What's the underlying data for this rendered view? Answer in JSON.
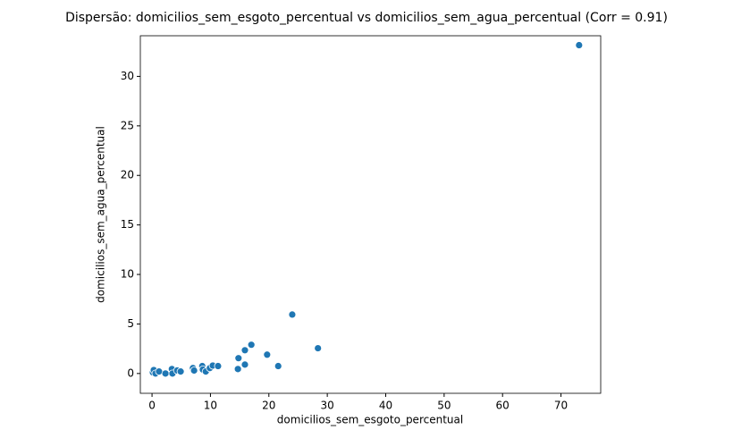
{
  "chart_data": {
    "type": "scatter",
    "title": "Dispersão: domicilios_sem_esgoto_percentual vs domicilios_sem_agua_percentual (Corr = 0.91)",
    "x_label": "domicilios_sem_esgoto_percentual",
    "y_label": "domicilios_sem_agua_percentual",
    "xlim": [
      -2.0,
      76.8
    ],
    "ylim": [
      -2.0,
      34.1
    ],
    "xticks": [
      0,
      10,
      20,
      30,
      40,
      50,
      60,
      70
    ],
    "yticks": [
      0,
      5,
      10,
      15,
      20,
      25,
      30
    ],
    "grid": false,
    "series": [
      {
        "color": "#1f77b4",
        "x": [
          0.15,
          0.3,
          0.6,
          1.2,
          2.3,
          3.4,
          3.5,
          4.3,
          4.9,
          7.0,
          7.2,
          8.6,
          8.7,
          9.2,
          9.9,
          10.4,
          11.3,
          14.7,
          14.8,
          15.9,
          15.9,
          17.0,
          19.7,
          21.6,
          24.0,
          28.4,
          73.1
        ],
        "values": [
          0.1,
          0.35,
          0.0,
          0.2,
          0.0,
          0.45,
          0.0,
          0.3,
          0.2,
          0.55,
          0.3,
          0.75,
          0.4,
          0.2,
          0.55,
          0.8,
          0.75,
          0.45,
          1.55,
          0.9,
          2.35,
          2.9,
          1.9,
          0.75,
          5.95,
          2.55,
          33.15
        ]
      }
    ]
  }
}
